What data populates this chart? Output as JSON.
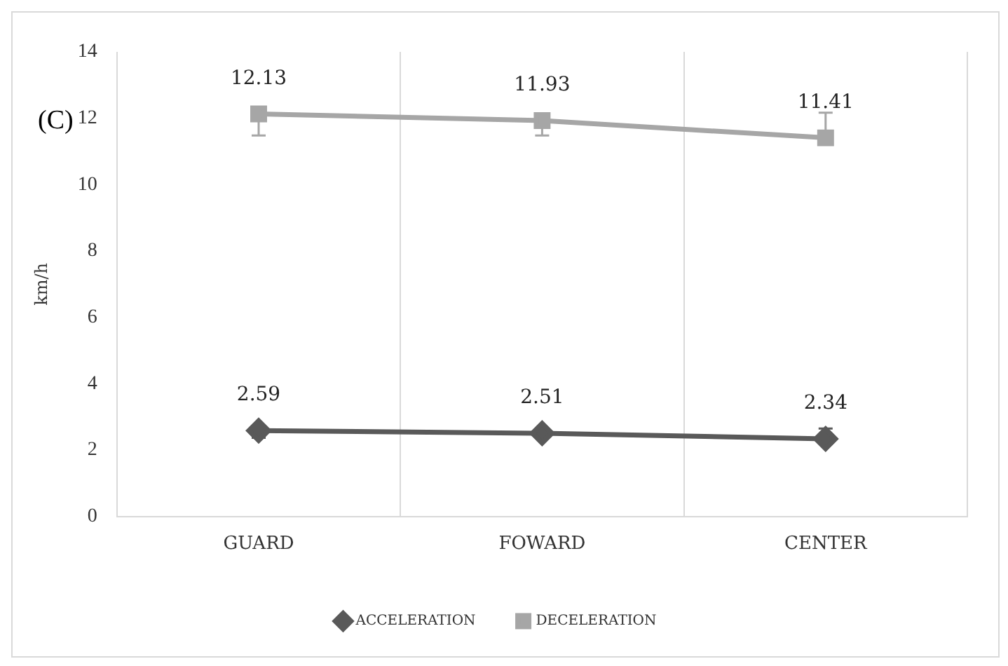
{
  "chart_data": {
    "type": "line",
    "ylabel": "km/h",
    "annotations": [
      "(C)"
    ],
    "categories": [
      "GUARD",
      "FOWARD",
      "CENTER"
    ],
    "series": [
      {
        "name": "ACCELERATION",
        "color": "#595959",
        "marker": "diamond",
        "values": [
          2.59,
          2.51,
          2.34
        ],
        "errors": [
          [
            2.37,
            2.59
          ],
          null,
          [
            2.34,
            2.65
          ]
        ]
      },
      {
        "name": "DECELERATION",
        "color": "#a6a6a6",
        "marker": "square",
        "values": [
          12.13,
          11.93,
          11.41
        ],
        "errors": [
          [
            11.48,
            12.13
          ],
          [
            11.48,
            11.93
          ],
          [
            11.41,
            12.17
          ]
        ]
      }
    ],
    "ylim": [
      0,
      14
    ],
    "yticks": [
      0,
      2,
      4,
      6,
      8,
      10,
      12,
      14
    ],
    "grid": "x",
    "legend": "bottom",
    "data_labels": true
  }
}
